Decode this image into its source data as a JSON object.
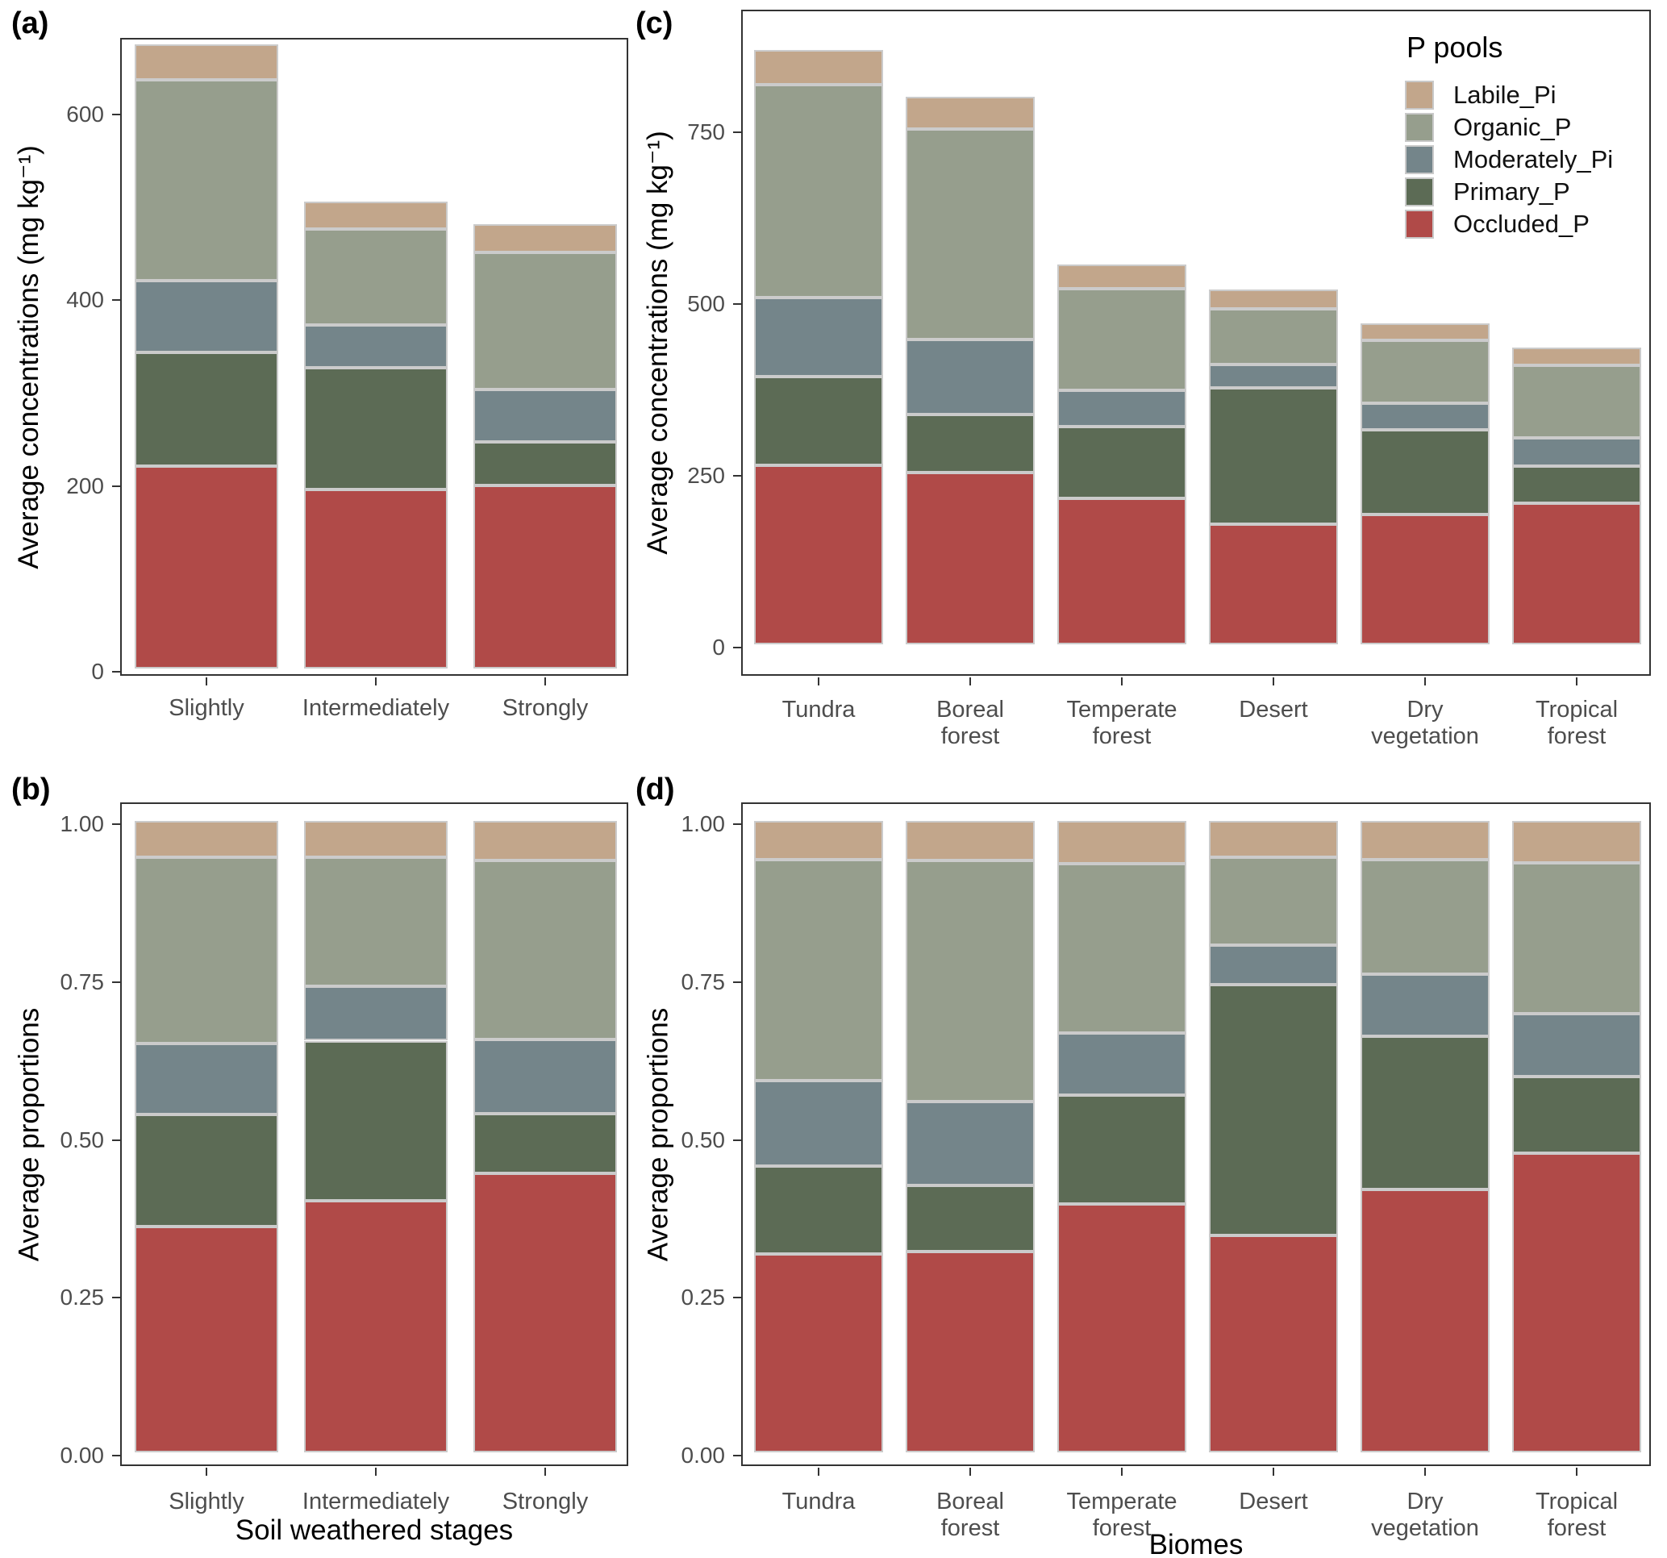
{
  "figure": {
    "panels": {
      "a": {
        "label": "(a)",
        "y_title": "Average concentrations (mg kg⁻¹)",
        "x_title": ""
      },
      "b": {
        "label": "(b)",
        "y_title": "Average proportions",
        "x_title": "Soil weathered stages"
      },
      "c": {
        "label": "(c)",
        "y_title": "Average concentrations (mg kg⁻¹)",
        "x_title": ""
      },
      "d": {
        "label": "(d)",
        "y_title": "Average proportions",
        "x_title": "Biomes"
      }
    },
    "legend": {
      "title": "P pools",
      "entries": [
        {
          "label": "Labile_Pi",
          "color": "#c2a68b"
        },
        {
          "label": "Organic_P",
          "color": "#969e8d"
        },
        {
          "label": "Moderately_Pi",
          "color": "#74858a"
        },
        {
          "label": "Primary_P",
          "color": "#5c6b55"
        },
        {
          "label": "Occluded_P",
          "color": "#b04a48"
        }
      ]
    },
    "series_colors": {
      "Occluded_P": "#b04a48",
      "Primary_P": "#5c6b55",
      "Moderately_Pi": "#74858a",
      "Organic_P": "#969e8d",
      "Labile_Pi": "#c2a68b"
    }
  },
  "chart_data": [
    {
      "type": "bar",
      "stacked": true,
      "panel": "a",
      "xlabel": "",
      "ylabel": "Average concentrations (mg kg⁻¹)",
      "categories": [
        "Slightly",
        "Intermediately",
        "Strongly"
      ],
      "x_tick_lines": [
        [
          "Slightly"
        ],
        [
          "Intermediately"
        ],
        [
          "Strongly"
        ]
      ],
      "series": [
        {
          "name": "Occluded_P",
          "values": [
            218,
            193,
            197
          ]
        },
        {
          "name": "Primary_P",
          "values": [
            122,
            131,
            47
          ]
        },
        {
          "name": "Moderately_Pi",
          "values": [
            77,
            46,
            56
          ]
        },
        {
          "name": "Organic_P",
          "values": [
            216,
            103,
            148
          ]
        },
        {
          "name": "Labile_Pi",
          "values": [
            39,
            29,
            30
          ]
        }
      ],
      "ylim": [
        0,
        680
      ],
      "yticks": [
        0,
        200,
        400,
        600
      ],
      "ytick_labels": [
        "0",
        "200",
        "400",
        "600"
      ],
      "grid": false
    },
    {
      "type": "bar",
      "stacked": true,
      "panel": "b",
      "xlabel": "Soil weathered stages",
      "ylabel": "Average proportions",
      "categories": [
        "Slightly",
        "Intermediately",
        "Strongly"
      ],
      "x_tick_lines": [
        [
          "Slightly"
        ],
        [
          "Intermediately"
        ],
        [
          "Strongly"
        ]
      ],
      "series": [
        {
          "name": "Occluded_P",
          "values": [
            0.357,
            0.399,
            0.442
          ]
        },
        {
          "name": "Primary_P",
          "values": [
            0.178,
            0.253,
            0.095
          ]
        },
        {
          "name": "Moderately_Pi",
          "values": [
            0.113,
            0.086,
            0.117
          ]
        },
        {
          "name": "Organic_P",
          "values": [
            0.295,
            0.205,
            0.284
          ]
        },
        {
          "name": "Labile_Pi",
          "values": [
            0.057,
            0.057,
            0.062
          ]
        }
      ],
      "ylim": [
        0,
        1.03
      ],
      "yticks": [
        0,
        0.25,
        0.5,
        0.75,
        1
      ],
      "ytick_labels": [
        "0.00",
        "0.25",
        "0.50",
        "0.75",
        "1.00"
      ],
      "grid": false
    },
    {
      "type": "bar",
      "stacked": true,
      "panel": "c",
      "xlabel": "",
      "ylabel": "Average concentrations (mg kg⁻¹)",
      "categories": [
        "Tundra",
        "Boreal forest",
        "Temperate forest",
        "Desert",
        "Dry vegetation",
        "Tropical forest"
      ],
      "x_tick_lines": [
        [
          "Tundra"
        ],
        [
          "Boreal",
          "forest"
        ],
        [
          "Temperate",
          "forest"
        ],
        [
          "Desert"
        ],
        [
          "Dry",
          "vegetation"
        ],
        [
          "Tropical",
          "forest"
        ]
      ],
      "series": [
        {
          "name": "Occluded_P",
          "values": [
            260,
            250,
            213,
            175,
            189,
            205
          ]
        },
        {
          "name": "Primary_P",
          "values": [
            130,
            84,
            104,
            198,
            123,
            54
          ]
        },
        {
          "name": "Moderately_Pi",
          "values": [
            115,
            110,
            53,
            34,
            39,
            42
          ]
        },
        {
          "name": "Organic_P",
          "values": [
            310,
            306,
            148,
            81,
            91,
            105
          ]
        },
        {
          "name": "Labile_Pi",
          "values": [
            50,
            47,
            35,
            28,
            25,
            26
          ]
        }
      ],
      "ylim": [
        0,
        920
      ],
      "yticks": [
        0,
        250,
        500,
        750
      ],
      "ytick_labels": [
        "0",
        "250",
        "500",
        "750"
      ],
      "grid": false
    },
    {
      "type": "bar",
      "stacked": true,
      "panel": "d",
      "xlabel": "Biomes",
      "ylabel": "Average proportions",
      "categories": [
        "Tundra",
        "Boreal forest",
        "Temperate forest",
        "Desert",
        "Dry vegetation",
        "Tropical forest"
      ],
      "x_tick_lines": [
        [
          "Tundra"
        ],
        [
          "Boreal",
          "forest"
        ],
        [
          "Temperate",
          "forest"
        ],
        [
          "Desert"
        ],
        [
          "Dry",
          "vegetation"
        ],
        [
          "Tropical",
          "forest"
        ]
      ],
      "series": [
        {
          "name": "Occluded_P",
          "values": [
            0.314,
            0.318,
            0.394,
            0.343,
            0.417,
            0.474
          ]
        },
        {
          "name": "Primary_P",
          "values": [
            0.14,
            0.105,
            0.172,
            0.398,
            0.242,
            0.121
          ]
        },
        {
          "name": "Moderately_Pi",
          "values": [
            0.135,
            0.133,
            0.098,
            0.062,
            0.098,
            0.1
          ]
        },
        {
          "name": "Organic_P",
          "values": [
            0.35,
            0.382,
            0.268,
            0.14,
            0.182,
            0.239
          ]
        },
        {
          "name": "Labile_Pi",
          "values": [
            0.061,
            0.062,
            0.068,
            0.057,
            0.061,
            0.066
          ]
        }
      ],
      "ylim": [
        0,
        1.03
      ],
      "yticks": [
        0,
        0.25,
        0.5,
        0.75,
        1
      ],
      "ytick_labels": [
        "0.00",
        "0.25",
        "0.50",
        "0.75",
        "1.00"
      ],
      "grid": false
    }
  ]
}
